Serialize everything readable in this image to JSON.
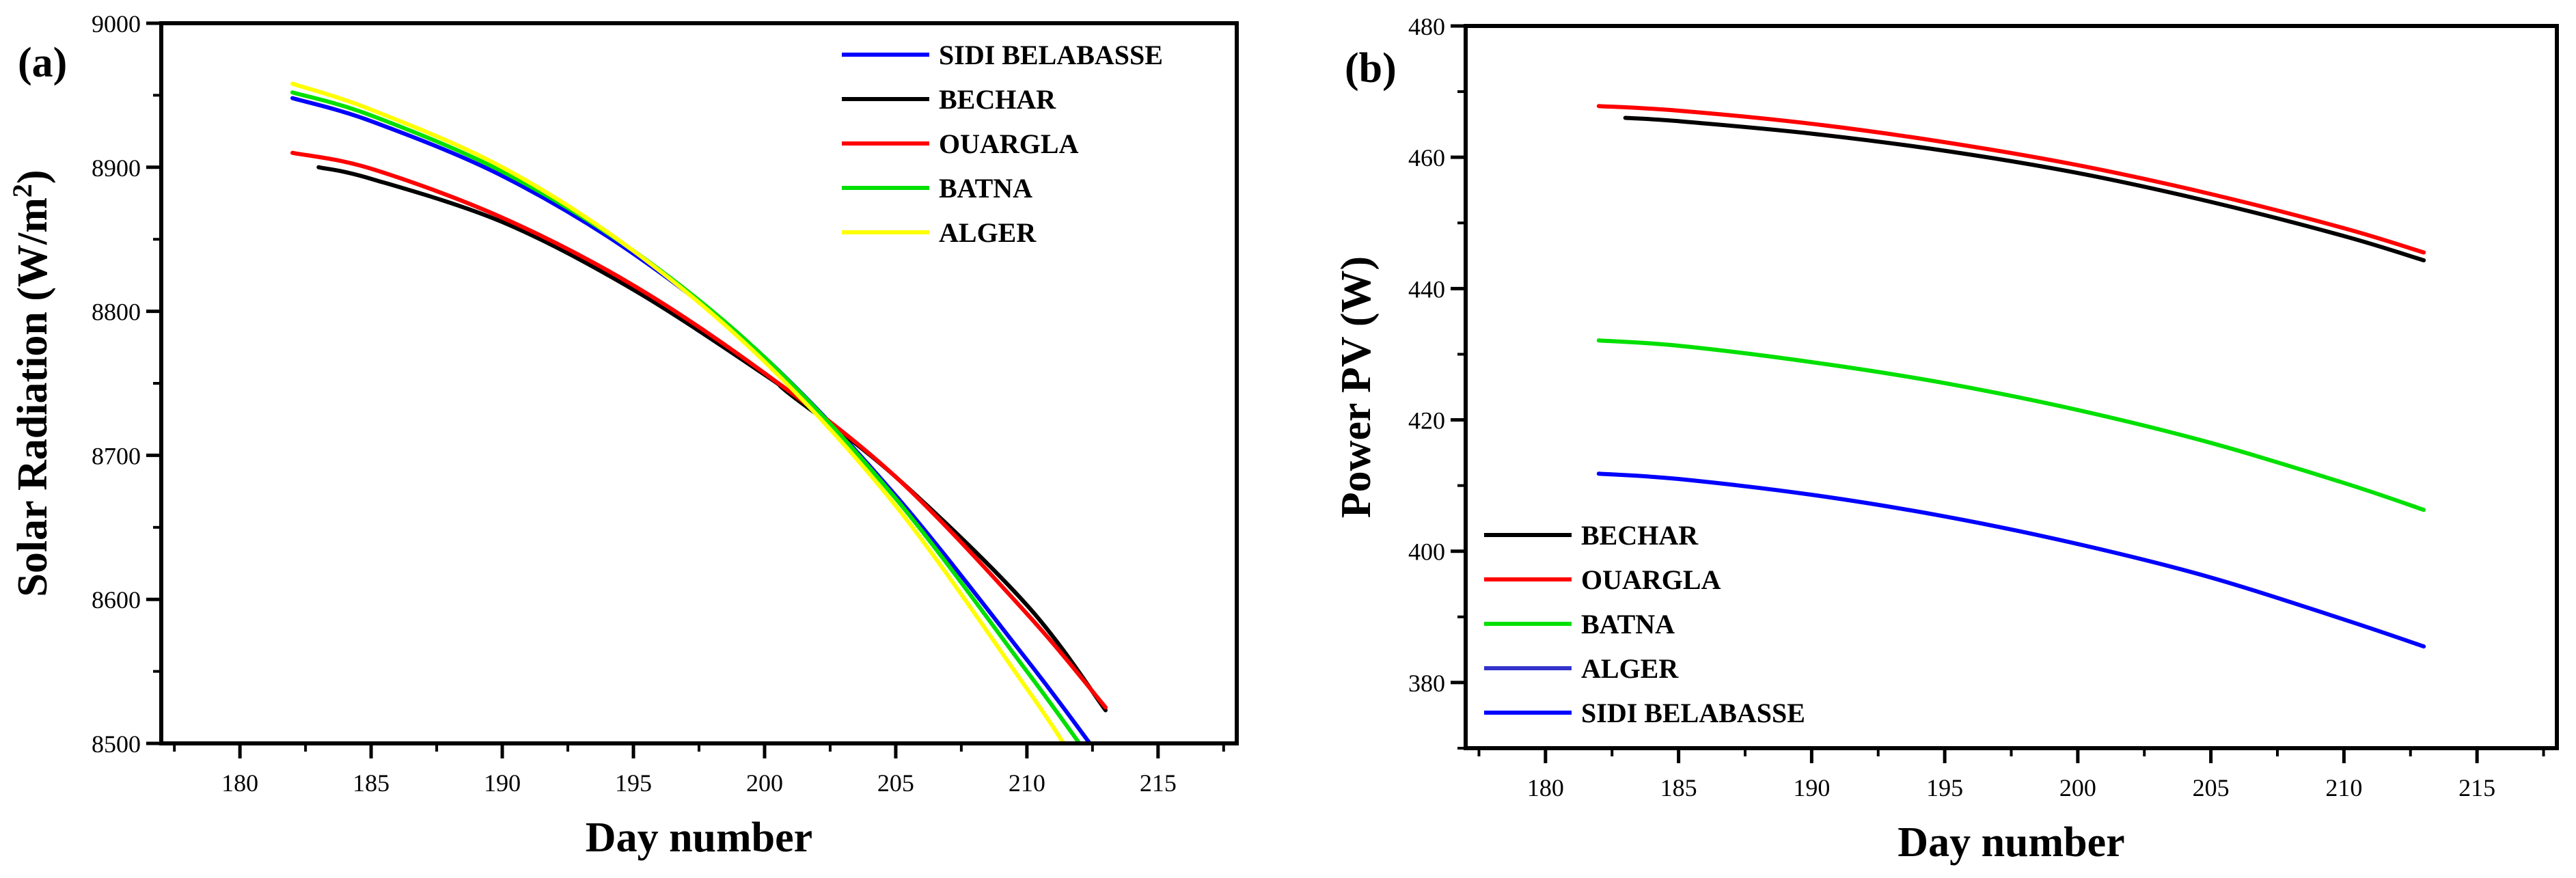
{
  "chart_data": [
    {
      "type": "line",
      "panel_label": "(a)",
      "xlabel": "Day number",
      "ylabel": "Solar Radiation (W/m",
      "ylabel_sup": "2",
      "ylabel_end": ")",
      "xlim": [
        177,
        218
      ],
      "ylim": [
        8500,
        9000
      ],
      "xticks": [
        180,
        185,
        190,
        195,
        200,
        205,
        210,
        215
      ],
      "yticks": [
        8500,
        8600,
        8700,
        8800,
        8900,
        9000
      ],
      "legend_position": "top-right",
      "series": [
        {
          "name": "SIDI BELABASSE",
          "color": "#0000ff",
          "x": [
            182,
            185,
            190,
            195,
            200,
            205,
            210,
            212.4
          ],
          "y": [
            8948,
            8932,
            8894,
            8840,
            8768,
            8672,
            8558,
            8500
          ]
        },
        {
          "name": "BECHAR",
          "color": "#000000",
          "x": [
            183,
            185,
            190,
            195,
            200,
            201,
            205,
            210,
            213
          ],
          "y": [
            8900,
            8892,
            8862,
            8815,
            8756,
            8742,
            8685,
            8596,
            8523
          ]
        },
        {
          "name": "OUARGLA",
          "color": "#ff0000",
          "x": [
            182,
            185,
            190,
            195,
            200,
            205,
            210,
            213
          ],
          "y": [
            8910,
            8899,
            8865,
            8818,
            8757,
            8685,
            8590,
            8525
          ]
        },
        {
          "name": "BATNA",
          "color": "#00e000",
          "x": [
            182,
            185,
            190,
            195,
            200,
            205,
            210,
            212
          ],
          "y": [
            8952,
            8936,
            8897,
            8842,
            8768,
            8670,
            8550,
            8500
          ]
        },
        {
          "name": "ALGER",
          "color": "#ffff00",
          "x": [
            182,
            185,
            190,
            195,
            200,
            205,
            210,
            211.4
          ],
          "y": [
            8958,
            8940,
            8900,
            8842,
            8765,
            8665,
            8538,
            8500
          ]
        }
      ]
    },
    {
      "type": "line",
      "panel_label": "(b)",
      "xlabel": "Day number",
      "ylabel": "Power PV (W)",
      "xlim": [
        177,
        218
      ],
      "ylim": [
        370,
        480
      ],
      "xticks": [
        180,
        185,
        190,
        195,
        200,
        205,
        210,
        215
      ],
      "yticks": [
        380,
        400,
        420,
        440,
        460,
        480
      ],
      "legend_position": "bottom-left",
      "series": [
        {
          "name": "BECHAR",
          "color": "#000000",
          "x": [
            183,
            185,
            190,
            195,
            200,
            205,
            210,
            213
          ],
          "y": [
            466,
            465.5,
            463.6,
            461,
            457.6,
            453.2,
            448,
            444.3
          ]
        },
        {
          "name": "OUARGLA",
          "color": "#ff0000",
          "x": [
            182,
            185,
            190,
            195,
            200,
            205,
            210,
            213
          ],
          "y": [
            467.8,
            467.1,
            465.1,
            462.3,
            458.8,
            454.4,
            449.2,
            445.5
          ]
        },
        {
          "name": "BATNA",
          "color": "#00e000",
          "x": [
            182,
            185,
            190,
            195,
            200,
            205,
            210,
            213
          ],
          "y": [
            432.1,
            431.3,
            428.8,
            425.6,
            421.5,
            416.5,
            410.4,
            406.3
          ]
        },
        {
          "name": "ALGER",
          "color": "#3333cc",
          "x": [],
          "y": []
        },
        {
          "name": "SIDI BELABASSE",
          "color": "#0000ff",
          "x": [
            182,
            185,
            190,
            195,
            200,
            205,
            210,
            213
          ],
          "y": [
            411.8,
            411,
            408.6,
            405.3,
            401.1,
            396,
            389.6,
            385.5
          ]
        }
      ]
    }
  ]
}
